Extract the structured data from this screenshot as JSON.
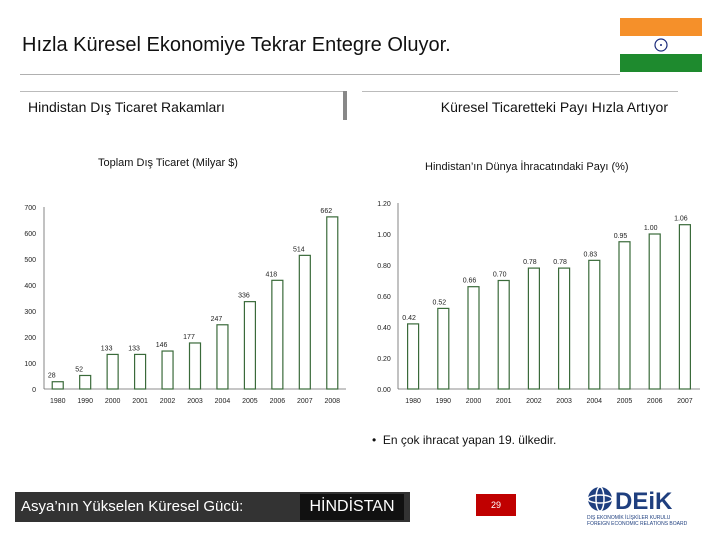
{
  "slide": {
    "title": "Hızla Küresel Ekonomiye Tekrar Entegre Oluyor.",
    "left_header": "Hindistan Dış Ticaret Rakamları",
    "right_header": "Küresel Ticaretteki Payı Hızla Artıyor",
    "bullet": "En çok ihracat yapan 19. ülkedir.",
    "footer_slogan": "Asya’nın Yükselen Küresel Gücü:",
    "footer_country": "HİNDİSTAN",
    "page_number": "29",
    "logo_text": "DEiK",
    "logo_subtitle_1": "DIŞ EKONOMİK İLİŞKİLER KURULU",
    "logo_subtitle_2": "FOREIGN ECONOMIC RELATIONS BOARD"
  },
  "colors": {
    "bar_fill": "#ffffff",
    "bar_stroke": "#3a6a3a",
    "flag_saffron": "#f5902a",
    "flag_green": "#1e8a2e",
    "chakra": "#1a2a7a",
    "footer_red": "#c00000",
    "logo_blue": "#1f3f7f"
  },
  "chart_data": [
    {
      "type": "bar",
      "title": "Toplam Dış Ticaret (Milyar $)",
      "categories": [
        "1980",
        "1990",
        "2000",
        "2001",
        "2002",
        "2003",
        "2004",
        "2005",
        "2006",
        "2007",
        "2008"
      ],
      "values": [
        28,
        52,
        133,
        133,
        146,
        177,
        247,
        336,
        418,
        514,
        662
      ],
      "data_labels": [
        "28",
        "52",
        "133",
        "133",
        "146",
        "177",
        "247",
        "336",
        "418",
        "514",
        "662"
      ],
      "yticks": [
        "0",
        "100",
        "200",
        "300",
        "400",
        "500",
        "600",
        "700"
      ],
      "ylim": [
        0,
        700
      ],
      "grid": false,
      "legend": "none"
    },
    {
      "type": "bar",
      "title": "Hindistan’ın Dünya İhracatındaki Payı (%)",
      "categories": [
        "1980",
        "1990",
        "2000",
        "2001",
        "2002",
        "2003",
        "2004",
        "2005",
        "2006",
        "2007"
      ],
      "values": [
        0.42,
        0.52,
        0.66,
        0.7,
        0.78,
        0.78,
        0.83,
        0.95,
        1.0,
        1.06
      ],
      "data_labels": [
        "0.42",
        "0.52",
        "0.66",
        "0.70",
        "0.78",
        "0.78",
        "0.83",
        "0.95",
        "1.00",
        "1.06"
      ],
      "yticks": [
        "0.00",
        "0.20",
        "0.40",
        "0.60",
        "0.80",
        "1.00",
        "1.20"
      ],
      "ylim": [
        0,
        1.2
      ],
      "grid": false,
      "legend": "none"
    }
  ]
}
